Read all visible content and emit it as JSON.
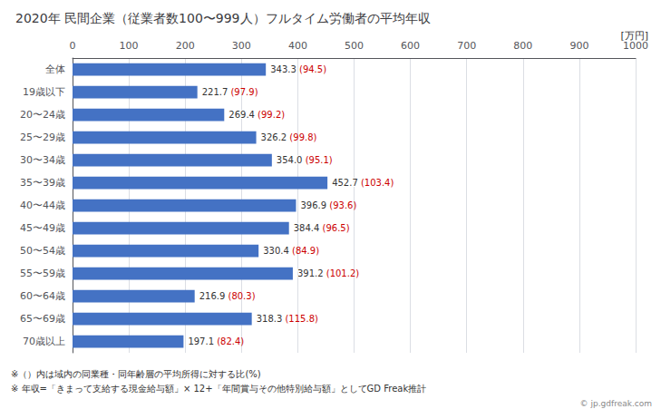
{
  "chart_data": {
    "type": "bar",
    "orientation": "horizontal",
    "title": "2020年 民間企業（従業者数100〜999人）フルタイム労働者の平均年収",
    "xlabel": "[万円]",
    "categories": [
      "全体",
      "19歳以下",
      "20〜24歳",
      "25〜29歳",
      "30〜34歳",
      "35〜39歳",
      "40〜44歳",
      "45〜49歳",
      "50〜54歳",
      "55〜59歳",
      "60〜64歳",
      "65〜69歳",
      "70歳以上"
    ],
    "values": [
      343.3,
      221.7,
      269.4,
      326.2,
      354.0,
      452.7,
      396.9,
      384.4,
      330.4,
      391.2,
      216.9,
      318.3,
      197.1
    ],
    "value_labels": [
      "343.3",
      "221.7",
      "269.4",
      "326.2",
      "354.0",
      "452.7",
      "396.9",
      "384.4",
      "330.4",
      "391.2",
      "216.9",
      "318.3",
      "197.1"
    ],
    "ratio_labels": [
      "(94.5)",
      "(97.9)",
      "(99.2)",
      "(99.8)",
      "(95.1)",
      "(103.4)",
      "(93.6)",
      "(96.5)",
      "(84.9)",
      "(101.2)",
      "(80.3)",
      "(115.8)",
      "(82.4)"
    ],
    "ratio_color": "#CC0000",
    "color": "#4472C4",
    "data_labels": true,
    "xlim": [
      0,
      1000
    ],
    "xticks": [
      0,
      100,
      200,
      300,
      400,
      500,
      600,
      700,
      800,
      900,
      1000
    ],
    "grid": true,
    "footnotes": [
      "※（）内は域内の同業種・同年齢層の平均所得に対する比(%)",
      "※ 年収=「きまって支給する現金給与額」× 12+「年間賞与その他特別給与額」としてGD Freak推計"
    ],
    "watermark": "© jp.gdfreak.com"
  }
}
